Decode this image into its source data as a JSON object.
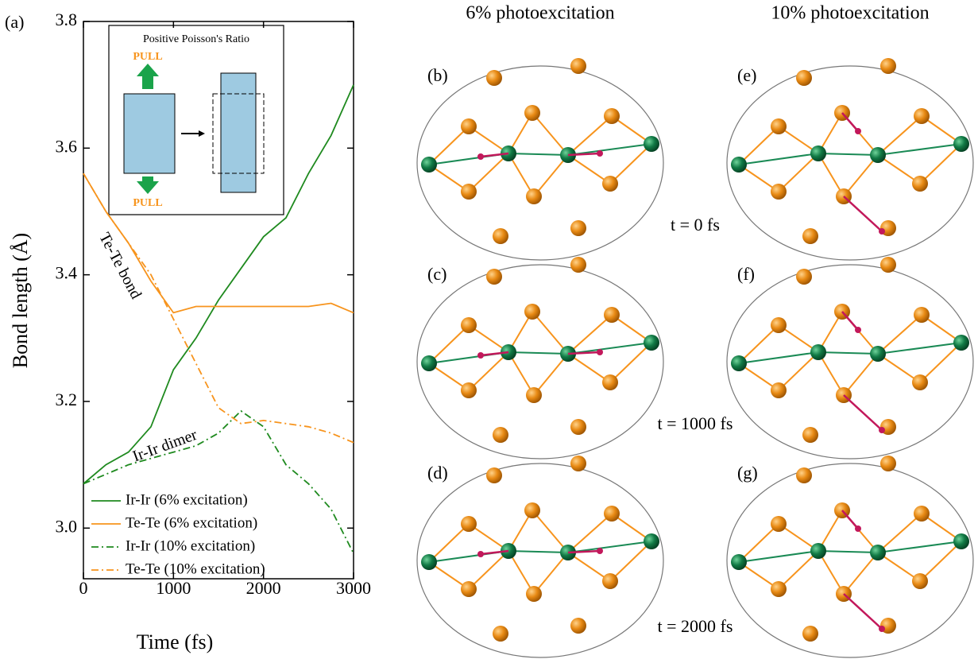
{
  "chart_data": {
    "type": "line",
    "panel_label": "(a)",
    "xlabel": "Time (fs)",
    "ylabel": "Bond length (Å)",
    "x": [
      0,
      250,
      500,
      750,
      1000,
      1250,
      1500,
      1750,
      2000,
      2250,
      2500,
      2750,
      3000
    ],
    "xlim": [
      0,
      3000
    ],
    "xticks": [
      0,
      1000,
      2000,
      3000
    ],
    "ylim": [
      2.92,
      3.8
    ],
    "yticks": [
      {
        "value": 3.0,
        "label": "3.0"
      },
      {
        "value": 3.2,
        "label": "3.2"
      },
      {
        "value": 3.4,
        "label": "3.4"
      },
      {
        "value": 3.6,
        "label": "3.6"
      },
      {
        "value": 3.8,
        "label": "3.8"
      }
    ],
    "series": [
      {
        "name": "Ir-Ir (6% excitation)",
        "color": "#1f8a1f",
        "dash": "solid",
        "values": [
          3.07,
          3.1,
          3.12,
          3.16,
          3.25,
          3.3,
          3.36,
          3.41,
          3.46,
          3.49,
          3.56,
          3.62,
          3.7
        ]
      },
      {
        "name": "Te-Te (6% excitation)",
        "color": "#f7941d",
        "dash": "solid",
        "values": [
          3.56,
          3.5,
          3.45,
          3.39,
          3.34,
          3.35,
          3.35,
          3.35,
          3.35,
          3.35,
          3.35,
          3.355,
          3.34
        ]
      },
      {
        "name": "Ir-Ir (10% excitation)",
        "color": "#1f8a1f",
        "dash": "dashdot",
        "values": [
          3.07,
          3.085,
          3.1,
          3.11,
          3.12,
          3.13,
          3.15,
          3.185,
          3.16,
          3.1,
          3.07,
          3.03,
          2.96
        ]
      },
      {
        "name": "Te-Te (10% excitation)",
        "color": "#f7941d",
        "dash": "dashdot",
        "values": [
          3.56,
          3.5,
          3.45,
          3.4,
          3.33,
          3.26,
          3.19,
          3.165,
          3.17,
          3.165,
          3.16,
          3.15,
          3.135
        ]
      }
    ],
    "annotations": [
      "Te-Te bond",
      "Ir-Ir dimer"
    ],
    "inset": {
      "title": "Positive Poisson's Ratio",
      "top": "PULL",
      "bottom": "PULL"
    }
  },
  "snapshots": {
    "columns": [
      "6% photoexcitation",
      "10% photoexcitation"
    ],
    "panels": [
      "(b)",
      "(e)",
      "(c)",
      "(f)",
      "(d)",
      "(g)"
    ],
    "times": [
      "t = 0 fs",
      "t = 1000 fs",
      "t = 2000 fs"
    ]
  }
}
